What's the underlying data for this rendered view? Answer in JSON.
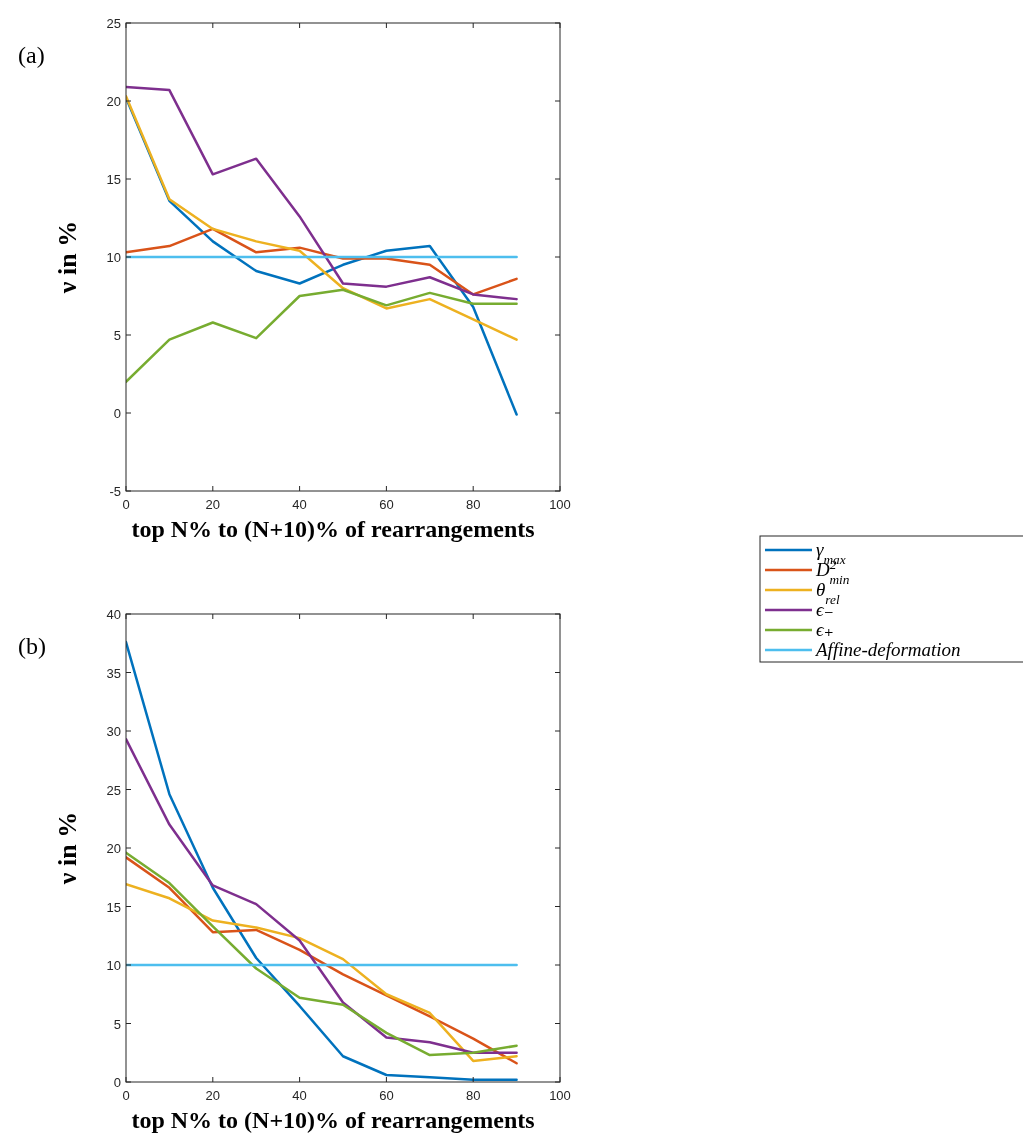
{
  "chart_data": [
    {
      "type": "line",
      "annotations": [
        "(a)"
      ],
      "xlabel": "top N% to (N+10)% of rearrangements",
      "ylabel": "ν in %",
      "x": [
        0,
        10,
        20,
        30,
        40,
        50,
        60,
        70,
        80,
        90
      ],
      "xlim": [
        0,
        100
      ],
      "xticks": [
        0,
        20,
        40,
        60,
        80,
        100
      ],
      "ylim": [
        -5,
        25
      ],
      "yticks": [
        -5,
        0,
        5,
        10,
        15,
        20,
        25
      ],
      "legend": "right",
      "series": [
        {
          "name": "γ$_{max}$",
          "color": "#0072bd",
          "values": [
            20.2,
            13.6,
            11.0,
            9.1,
            8.3,
            9.5,
            10.4,
            10.7,
            6.8,
            -0.1
          ]
        },
        {
          "name": "D$^{2}$$_{min}$",
          "color": "#d95319",
          "values": [
            10.3,
            10.7,
            11.8,
            10.3,
            10.6,
            9.9,
            9.9,
            9.5,
            7.6,
            8.6
          ]
        },
        {
          "name": "θ$_{rel}$",
          "color": "#edb120",
          "values": [
            20.3,
            13.7,
            11.8,
            11.0,
            10.4,
            8.0,
            6.7,
            7.3,
            6.0,
            4.7
          ]
        },
        {
          "name": "ϵ₋",
          "color": "#7e2f8e",
          "values": [
            20.9,
            20.7,
            15.3,
            16.3,
            12.6,
            8.3,
            8.1,
            8.7,
            7.6,
            7.3
          ]
        },
        {
          "name": "ϵ₊",
          "color": "#77ac30",
          "values": [
            2.0,
            4.7,
            5.8,
            4.8,
            7.5,
            7.9,
            6.9,
            7.7,
            7.0,
            7.0
          ]
        },
        {
          "name": "Affine-deformation",
          "color": "#4dbeee",
          "values": [
            10,
            10,
            10,
            10,
            10,
            10,
            10,
            10,
            10,
            10
          ]
        }
      ]
    },
    {
      "type": "line",
      "annotations": [
        "(b)"
      ],
      "xlabel": "top N% to (N+10)% of rearrangements",
      "ylabel": "ν in %",
      "x": [
        0,
        10,
        20,
        30,
        40,
        50,
        60,
        70,
        80,
        90
      ],
      "xlim": [
        0,
        100
      ],
      "xticks": [
        0,
        20,
        40,
        60,
        80,
        100
      ],
      "ylim": [
        0,
        40
      ],
      "yticks": [
        0,
        5,
        10,
        15,
        20,
        25,
        30,
        35,
        40
      ],
      "legend": "right",
      "series": [
        {
          "name": "γ$_{max}$",
          "color": "#0072bd",
          "values": [
            37.6,
            24.6,
            16.6,
            10.6,
            6.5,
            2.2,
            0.6,
            0.4,
            0.2,
            0.2
          ]
        },
        {
          "name": "D$^{2}$$_{min}$",
          "color": "#d95319",
          "values": [
            19.2,
            16.6,
            12.8,
            13.0,
            11.3,
            9.2,
            7.4,
            5.6,
            3.7,
            1.6
          ]
        },
        {
          "name": "θ$_{rel}$",
          "color": "#edb120",
          "values": [
            16.9,
            15.7,
            13.8,
            13.2,
            12.3,
            10.5,
            7.5,
            5.9,
            1.8,
            2.2
          ]
        },
        {
          "name": "ϵ₋",
          "color": "#7e2f8e",
          "values": [
            29.3,
            22.0,
            16.8,
            15.2,
            12.1,
            6.8,
            3.8,
            3.4,
            2.5,
            2.5
          ]
        },
        {
          "name": "ϵ₊",
          "color": "#77ac30",
          "values": [
            19.6,
            17.0,
            13.3,
            9.7,
            7.2,
            6.6,
            4.2,
            2.3,
            2.5,
            3.1
          ]
        },
        {
          "name": "Affine-deformation",
          "color": "#4dbeee",
          "values": [
            10,
            10,
            10,
            10,
            10,
            10,
            10,
            10,
            10,
            10
          ]
        }
      ]
    }
  ]
}
